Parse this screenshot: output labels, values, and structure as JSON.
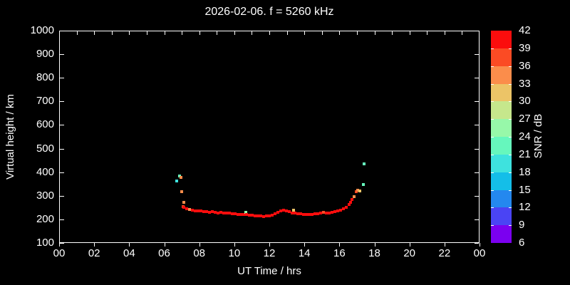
{
  "window": {
    "background": "#000000",
    "foreground": "#ffffff"
  },
  "chart_data": {
    "type": "scatter",
    "title": "2026-02-06. f = 5260 kHz",
    "xlabel": "UT Time / hrs",
    "ylabel": "Virtual height / km",
    "xlim": [
      0,
      24
    ],
    "ylim": [
      100,
      1000
    ],
    "grid": false,
    "x_tick_values": [
      0,
      2,
      4,
      6,
      8,
      10,
      12,
      14,
      16,
      18,
      20,
      22,
      24
    ],
    "x_tick_labels": [
      "00",
      "02",
      "04",
      "06",
      "08",
      "10",
      "12",
      "14",
      "16",
      "18",
      "20",
      "22",
      "00"
    ],
    "x_minor_tick_step_hrs": 1,
    "y_tick_values": [
      100,
      200,
      300,
      400,
      500,
      600,
      700,
      800,
      900,
      1000
    ],
    "y_tick_labels": [
      "100",
      "200",
      "300",
      "400",
      "500",
      "600",
      "700",
      "800",
      "900",
      "1000"
    ],
    "colorbar": {
      "label": "SNR / dB",
      "min": 6,
      "max": 42,
      "step": 3,
      "tick_labels_top_to_bottom": [
        "42",
        "39",
        "36",
        "33",
        "30",
        "27",
        "24",
        "21",
        "18",
        "15",
        "12",
        "9",
        "6"
      ],
      "colors_low_to_high": [
        "#7B00F0",
        "#4A44F4",
        "#2488EF",
        "#14BEE8",
        "#3EE2DE",
        "#66F7BD",
        "#97F8A9",
        "#C6E78C",
        "#ECC467",
        "#FB8D4B",
        "#FB4B24",
        "#FB0D0D"
      ]
    },
    "series": [
      {
        "name": "ionospheric-echoes",
        "marker": "square",
        "marker_size_px": 4,
        "points_format": [
          "time_hrs",
          "virtual_height_km",
          "snr_db"
        ],
        "points": [
          [
            6.71,
            363,
            19.5
          ],
          [
            6.87,
            385,
            22.5
          ],
          [
            6.95,
            378,
            34.5
          ],
          [
            7.0,
            317,
            34.5
          ],
          [
            7.1,
            272,
            34.5
          ],
          [
            7.08,
            254,
            37.5
          ],
          [
            7.12,
            252,
            40.5
          ],
          [
            7.28,
            246,
            40.5
          ],
          [
            7.44,
            241,
            34.5
          ],
          [
            7.61,
            239,
            40.5
          ],
          [
            7.77,
            237,
            40.5
          ],
          [
            7.93,
            236,
            40.5
          ],
          [
            8.09,
            237,
            40.5
          ],
          [
            8.26,
            234,
            40.5
          ],
          [
            8.42,
            233,
            40.5
          ],
          [
            8.58,
            231,
            40.5
          ],
          [
            8.75,
            232,
            40.5
          ],
          [
            8.91,
            230,
            40.5
          ],
          [
            9.07,
            228,
            40.5
          ],
          [
            9.24,
            229,
            40.5
          ],
          [
            9.4,
            227,
            40.5
          ],
          [
            9.56,
            226,
            40.5
          ],
          [
            9.72,
            227,
            40.5
          ],
          [
            9.89,
            225,
            40.5
          ],
          [
            10.05,
            224,
            40.5
          ],
          [
            10.21,
            222,
            40.5
          ],
          [
            10.38,
            221,
            40.5
          ],
          [
            10.54,
            221,
            40.5
          ],
          [
            10.66,
            231,
            25.5
          ],
          [
            10.7,
            220,
            40.5
          ],
          [
            10.86,
            219,
            40.5
          ],
          [
            11.03,
            218,
            40.5
          ],
          [
            11.19,
            216,
            40.5
          ],
          [
            11.35,
            214,
            40.5
          ],
          [
            11.52,
            215,
            40.5
          ],
          [
            11.68,
            213,
            40.5
          ],
          [
            11.84,
            214,
            40.5
          ],
          [
            12.0,
            216,
            40.5
          ],
          [
            12.17,
            219,
            40.5
          ],
          [
            12.33,
            224,
            40.5
          ],
          [
            12.49,
            229,
            40.5
          ],
          [
            12.65,
            235,
            40.5
          ],
          [
            12.82,
            238,
            40.5
          ],
          [
            12.98,
            236,
            40.5
          ],
          [
            13.14,
            232,
            40.5
          ],
          [
            13.31,
            228,
            40.5
          ],
          [
            13.38,
            238,
            31.5
          ],
          [
            13.47,
            227,
            40.5
          ],
          [
            13.63,
            225,
            40.5
          ],
          [
            13.79,
            223,
            40.5
          ],
          [
            13.96,
            221,
            40.5
          ],
          [
            14.12,
            222,
            40.5
          ],
          [
            14.28,
            220,
            40.5
          ],
          [
            14.45,
            221,
            40.5
          ],
          [
            14.61,
            223,
            40.5
          ],
          [
            14.77,
            225,
            40.5
          ],
          [
            14.93,
            227,
            40.5
          ],
          [
            15.1,
            229,
            37.5
          ],
          [
            15.26,
            227,
            40.5
          ],
          [
            15.42,
            226,
            40.5
          ],
          [
            15.59,
            229,
            40.5
          ],
          [
            15.75,
            233,
            40.5
          ],
          [
            15.91,
            236,
            40.5
          ],
          [
            16.08,
            239,
            40.5
          ],
          [
            16.24,
            244,
            40.5
          ],
          [
            16.4,
            251,
            40.5
          ],
          [
            16.57,
            262,
            40.5
          ],
          [
            16.62,
            271,
            40.5
          ],
          [
            16.7,
            283,
            40.5
          ],
          [
            16.86,
            295,
            34.5
          ],
          [
            16.95,
            317,
            37.5
          ],
          [
            17.03,
            325,
            34.5
          ],
          [
            17.17,
            320,
            31.5
          ],
          [
            17.35,
            349,
            22.5
          ],
          [
            17.43,
            434,
            22.5
          ]
        ]
      }
    ]
  }
}
